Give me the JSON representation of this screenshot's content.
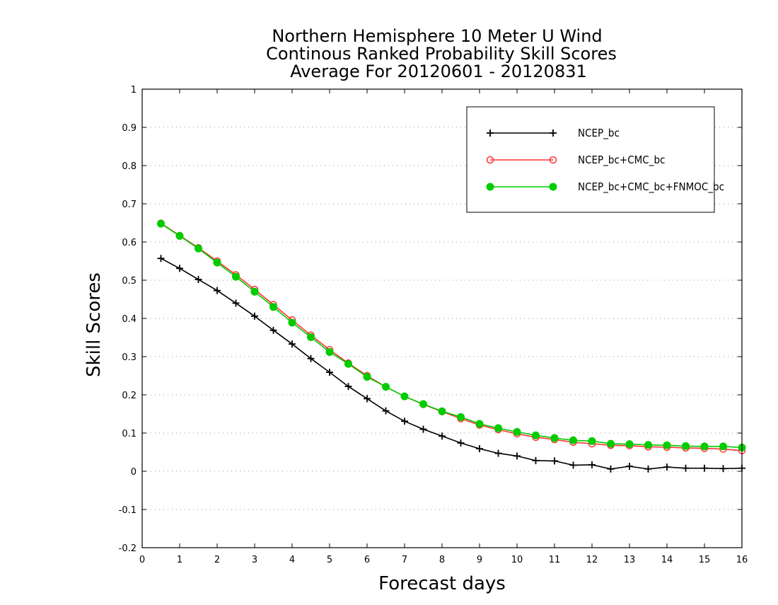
{
  "chart_data": {
    "type": "line",
    "title_lines": [
      "Northern Hemisphere 10 Meter U Wind",
      "Continous Ranked Probability Skill Scores",
      "Average For 20120601 - 20120831"
    ],
    "xlabel": "Forecast days",
    "ylabel": "Skill Scores",
    "xlim": [
      0,
      16
    ],
    "ylim": [
      -0.2,
      1
    ],
    "x_ticks": [
      0,
      1,
      2,
      3,
      4,
      5,
      6,
      7,
      8,
      9,
      10,
      11,
      12,
      13,
      14,
      15,
      16
    ],
    "x_tick_labels": [
      "0",
      "1",
      "2",
      "3",
      "4",
      "5",
      "6",
      "7",
      "8",
      "9",
      "10",
      "11",
      "12",
      "13",
      "14",
      "15",
      "16"
    ],
    "y_ticks": [
      -0.2,
      -0.1,
      0,
      0.1,
      0.2,
      0.3,
      0.4,
      0.5,
      0.6,
      0.7,
      0.8,
      0.9,
      1
    ],
    "y_tick_labels": [
      "-0.2",
      "-0.1",
      "0",
      "0.1",
      "0.2",
      "0.3",
      "0.4",
      "0.5",
      "0.6",
      "0.7",
      "0.8",
      "0.9",
      "1"
    ],
    "grid": "dotted horizontal",
    "legend_position": "top-right",
    "x": [
      0.5,
      1,
      1.5,
      2,
      2.5,
      3,
      3.5,
      4,
      4.5,
      5,
      5.5,
      6,
      6.5,
      7,
      7.5,
      8,
      8.5,
      9,
      9.5,
      10,
      10.5,
      11,
      11.5,
      12,
      12.5,
      13,
      13.5,
      14,
      14.5,
      15,
      15.5,
      16
    ],
    "series": [
      {
        "name": "NCEP_bc",
        "color": "#000000",
        "marker": "plus",
        "values": [
          0.557,
          0.531,
          0.502,
          0.473,
          0.44,
          0.406,
          0.369,
          0.333,
          0.295,
          0.259,
          0.222,
          0.19,
          0.158,
          0.131,
          0.11,
          0.092,
          0.074,
          0.059,
          0.047,
          0.04,
          0.028,
          0.027,
          0.016,
          0.017,
          0.006,
          0.013,
          0.006,
          0.011,
          0.008,
          0.008,
          0.007,
          0.008
        ]
      },
      {
        "name": "NCEP_bc+CMC_bc",
        "color": "#ff3333",
        "marker": "open-circle",
        "values": [
          0.649,
          0.617,
          0.585,
          0.55,
          0.514,
          0.476,
          0.436,
          0.396,
          0.356,
          0.318,
          0.283,
          0.25,
          0.221,
          0.196,
          0.175,
          0.156,
          0.138,
          0.121,
          0.109,
          0.098,
          0.089,
          0.083,
          0.076,
          0.072,
          0.068,
          0.067,
          0.064,
          0.063,
          0.061,
          0.06,
          0.058,
          0.054
        ]
      },
      {
        "name": "NCEP_bc+CMC_bc+FNMOC_bc",
        "color": "#00cc00",
        "marker": "filled-circle",
        "values": [
          0.648,
          0.616,
          0.583,
          0.546,
          0.509,
          0.47,
          0.43,
          0.389,
          0.351,
          0.312,
          0.281,
          0.247,
          0.221,
          0.196,
          0.176,
          0.157,
          0.142,
          0.124,
          0.113,
          0.103,
          0.094,
          0.087,
          0.081,
          0.079,
          0.072,
          0.071,
          0.069,
          0.068,
          0.066,
          0.065,
          0.065,
          0.062
        ]
      }
    ]
  }
}
